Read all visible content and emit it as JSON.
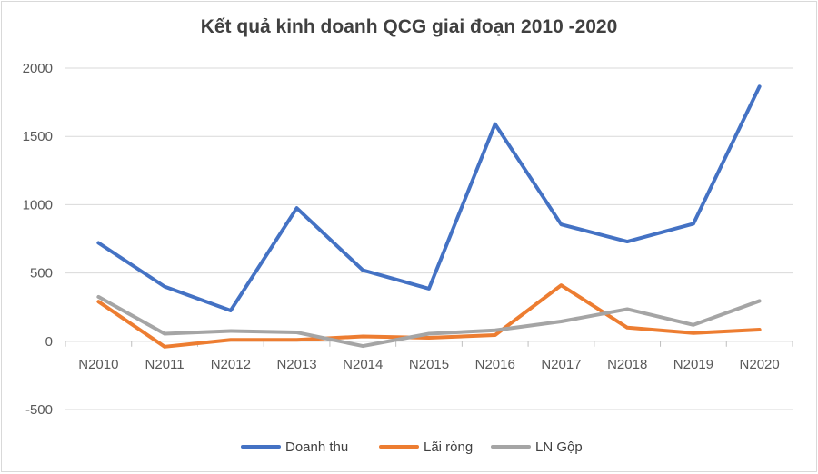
{
  "chart_data": {
    "type": "line",
    "title": "Kết quả kinh doanh QCG giai đoạn 2010 -2020",
    "xlabel": "",
    "ylabel": "",
    "categories": [
      "N2010",
      "N2011",
      "N2012",
      "N2013",
      "N2014",
      "N2015",
      "N2016",
      "N2017",
      "N2018",
      "N2019",
      "N2020"
    ],
    "ylim": [
      -500,
      2000
    ],
    "yticks": [
      -500,
      0,
      500,
      1000,
      1500,
      2000
    ],
    "ytick_labels": [
      "-500",
      "0",
      "500",
      "1000",
      "1500",
      "2000"
    ],
    "grid": true,
    "legend_position": "bottom",
    "series": [
      {
        "name": "Doanh thu",
        "color": "#4472C4",
        "values": [
          720,
          400,
          225,
          975,
          520,
          385,
          1590,
          855,
          730,
          860,
          1865
        ]
      },
      {
        "name": "Lãi ròng",
        "color": "#ED7D31",
        "values": [
          290,
          -40,
          10,
          10,
          35,
          25,
          45,
          410,
          100,
          60,
          85
        ]
      },
      {
        "name": "LN Gộp",
        "color": "#A5A5A5",
        "values": [
          325,
          55,
          75,
          65,
          -35,
          55,
          80,
          145,
          235,
          120,
          295
        ]
      }
    ]
  }
}
